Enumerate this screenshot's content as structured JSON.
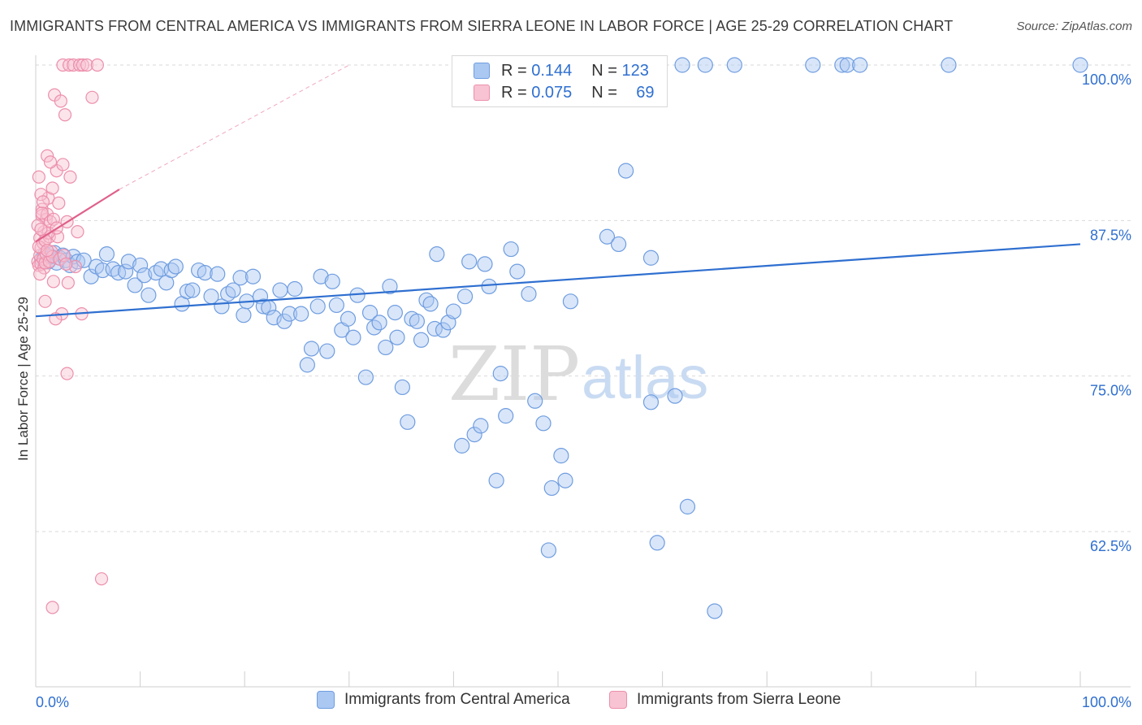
{
  "title": "IMMIGRANTS FROM CENTRAL AMERICA VS IMMIGRANTS FROM SIERRA LEONE IN LABOR FORCE | AGE 25-29 CORRELATION CHART",
  "source": "Source: ZipAtlas.com",
  "watermark": {
    "zip": "ZIP",
    "atlas": "atlas"
  },
  "legend": {
    "rows": [
      {
        "r_label": "R =",
        "r_value": "0.144",
        "n_label": "N =",
        "n_value": "123",
        "color": "#aac8f2",
        "border": "#6f9de0"
      },
      {
        "r_label": "R =",
        "r_value": "0.075",
        "n_label": "N =",
        "n_value": "69",
        "color": "#f8c3d3",
        "border": "#ec8fab"
      }
    ]
  },
  "bottom_legend": [
    {
      "label": "Immigrants from Central America",
      "color": "#aac8f2",
      "border": "#6f9de0"
    },
    {
      "label": "Immigrants from Sierra Leone",
      "color": "#f8c3d3",
      "border": "#ec8fab"
    }
  ],
  "chart_data": {
    "type": "scatter",
    "title": "IMMIGRANTS FROM CENTRAL AMERICA VS IMMIGRANTS FROM SIERRA LEONE IN LABOR FORCE | AGE 25-29 CORRELATION CHART",
    "xlabel": "",
    "ylabel": "In Labor Force | Age 25-29",
    "xlim": [
      0,
      100
    ],
    "ylim": [
      52,
      101.5
    ],
    "x_tick_labels": [
      "0.0%",
      "100.0%"
    ],
    "y_ticks": [
      62.5,
      75.0,
      87.5,
      100.0
    ],
    "y_tick_labels": [
      "62.5%",
      "75.0%",
      "87.5%",
      "100.0%"
    ],
    "grid": "horizontal dashed",
    "legend_position": "top-center",
    "series": [
      {
        "name": "Immigrants from Central America",
        "color": "#6f9de0",
        "fill": "rgba(170,200,242,0.45)",
        "trend": {
          "x": [
            0,
            100
          ],
          "y": [
            79.8,
            85.6
          ],
          "color": "#2f6fd0"
        },
        "points": [
          [
            0.6,
            84.4
          ],
          [
            0.9,
            84.8
          ],
          [
            1.2,
            84.2
          ],
          [
            1.5,
            84.6
          ],
          [
            1.8,
            84.9
          ],
          [
            2.0,
            84.1
          ],
          [
            2.3,
            84.5
          ],
          [
            2.6,
            84.7
          ],
          [
            2.9,
            84.3
          ],
          [
            3.3,
            83.9
          ],
          [
            3.6,
            84.6
          ],
          [
            4.0,
            84.2
          ],
          [
            4.6,
            84.3
          ],
          [
            5.3,
            83.0
          ],
          [
            5.8,
            83.8
          ],
          [
            6.4,
            83.5
          ],
          [
            6.8,
            84.8
          ],
          [
            7.4,
            83.6
          ],
          [
            7.9,
            83.3
          ],
          [
            8.6,
            83.4
          ],
          [
            8.9,
            84.2
          ],
          [
            9.5,
            82.3
          ],
          [
            10.0,
            83.9
          ],
          [
            10.4,
            83.1
          ],
          [
            10.8,
            81.5
          ],
          [
            11.5,
            83.3
          ],
          [
            12.0,
            83.6
          ],
          [
            12.5,
            82.5
          ],
          [
            13.0,
            83.5
          ],
          [
            13.4,
            83.8
          ],
          [
            14.0,
            80.8
          ],
          [
            14.5,
            81.8
          ],
          [
            15.0,
            81.9
          ],
          [
            15.6,
            83.5
          ],
          [
            16.2,
            83.3
          ],
          [
            16.8,
            81.4
          ],
          [
            17.4,
            83.2
          ],
          [
            17.8,
            80.6
          ],
          [
            18.4,
            81.6
          ],
          [
            18.9,
            81.9
          ],
          [
            19.6,
            82.9
          ],
          [
            19.9,
            79.9
          ],
          [
            20.2,
            81.0
          ],
          [
            20.8,
            83.0
          ],
          [
            21.5,
            81.4
          ],
          [
            21.8,
            80.6
          ],
          [
            22.3,
            80.5
          ],
          [
            22.8,
            79.7
          ],
          [
            23.4,
            81.9
          ],
          [
            23.8,
            79.4
          ],
          [
            24.3,
            80.0
          ],
          [
            24.8,
            82.0
          ],
          [
            25.4,
            80.0
          ],
          [
            26.0,
            75.9
          ],
          [
            26.4,
            77.2
          ],
          [
            27.0,
            80.6
          ],
          [
            27.3,
            83.0
          ],
          [
            27.9,
            77.0
          ],
          [
            28.4,
            82.6
          ],
          [
            28.8,
            80.7
          ],
          [
            29.3,
            78.7
          ],
          [
            29.9,
            79.6
          ],
          [
            30.4,
            78.1
          ],
          [
            30.8,
            81.5
          ],
          [
            31.6,
            74.9
          ],
          [
            32.0,
            80.1
          ],
          [
            32.4,
            78.9
          ],
          [
            32.9,
            79.3
          ],
          [
            33.5,
            77.3
          ],
          [
            33.9,
            82.2
          ],
          [
            34.4,
            80.1
          ],
          [
            34.6,
            78.1
          ],
          [
            35.1,
            74.1
          ],
          [
            35.6,
            71.3
          ],
          [
            36.0,
            79.6
          ],
          [
            36.5,
            79.4
          ],
          [
            36.9,
            77.9
          ],
          [
            37.4,
            81.1
          ],
          [
            37.8,
            80.8
          ],
          [
            38.2,
            78.8
          ],
          [
            38.4,
            84.8
          ],
          [
            39.0,
            78.7
          ],
          [
            39.5,
            79.3
          ],
          [
            40.0,
            80.2
          ],
          [
            40.8,
            69.4
          ],
          [
            41.1,
            81.4
          ],
          [
            41.5,
            84.2
          ],
          [
            42.0,
            70.3
          ],
          [
            42.6,
            71.0
          ],
          [
            43.0,
            84.0
          ],
          [
            43.4,
            82.2
          ],
          [
            44.1,
            66.6
          ],
          [
            44.5,
            75.2
          ],
          [
            45.0,
            71.8
          ],
          [
            45.5,
            85.2
          ],
          [
            46.1,
            83.4
          ],
          [
            47.2,
            81.6
          ],
          [
            47.8,
            73.0
          ],
          [
            48.6,
            71.2
          ],
          [
            49.1,
            61.0
          ],
          [
            49.4,
            66.0
          ],
          [
            50.3,
            68.6
          ],
          [
            50.7,
            66.6
          ],
          [
            51.2,
            81.0
          ],
          [
            52.7,
            100.0
          ],
          [
            54.7,
            86.2
          ],
          [
            55.8,
            85.6
          ],
          [
            56.5,
            91.5
          ],
          [
            58.9,
            84.5
          ],
          [
            58.9,
            72.9
          ],
          [
            61.2,
            73.4
          ],
          [
            59.5,
            61.6
          ],
          [
            62.4,
            64.5
          ],
          [
            64.1,
            100.0
          ],
          [
            61.9,
            100.0
          ],
          [
            66.9,
            100.0
          ],
          [
            65.0,
            56.1
          ],
          [
            74.4,
            100.0
          ],
          [
            77.2,
            100.0
          ],
          [
            77.7,
            100.0
          ],
          [
            78.9,
            100.0
          ],
          [
            87.4,
            100.0
          ],
          [
            100.0,
            100.0
          ]
        ]
      },
      {
        "name": "Immigrants from Sierra Leone",
        "color": "#ec8fab",
        "fill": "rgba(248,195,211,0.45)",
        "trend": {
          "x": [
            0,
            8
          ],
          "y": [
            85.8,
            90.0
          ],
          "color": "#e0608a",
          "extended_to": [
            30,
            100
          ]
        },
        "points": [
          [
            0.2,
            84.2
          ],
          [
            0.3,
            83.9
          ],
          [
            0.4,
            84.7
          ],
          [
            0.4,
            86.1
          ],
          [
            0.5,
            85.3
          ],
          [
            0.5,
            84.0
          ],
          [
            0.6,
            88.4
          ],
          [
            0.6,
            87.9
          ],
          [
            0.7,
            85.7
          ],
          [
            0.7,
            84.4
          ],
          [
            0.8,
            83.7
          ],
          [
            0.8,
            86.6
          ],
          [
            0.9,
            84.1
          ],
          [
            1.0,
            87.6
          ],
          [
            1.0,
            84.8
          ],
          [
            1.1,
            88.0
          ],
          [
            1.1,
            92.7
          ],
          [
            1.2,
            89.3
          ],
          [
            1.3,
            86.2
          ],
          [
            1.3,
            84.2
          ],
          [
            1.4,
            87.4
          ],
          [
            1.5,
            85.0
          ],
          [
            1.6,
            84.6
          ],
          [
            1.7,
            87.6
          ],
          [
            1.7,
            82.6
          ],
          [
            1.8,
            97.6
          ],
          [
            2.0,
            91.5
          ],
          [
            2.1,
            86.2
          ],
          [
            2.2,
            88.9
          ],
          [
            2.3,
            84.4
          ],
          [
            2.4,
            97.1
          ],
          [
            2.5,
            80.0
          ],
          [
            2.6,
            92.0
          ],
          [
            2.6,
            100.0
          ],
          [
            2.7,
            84.7
          ],
          [
            2.8,
            96.0
          ],
          [
            3.0,
            87.4
          ],
          [
            3.0,
            75.2
          ],
          [
            3.1,
            82.5
          ],
          [
            3.2,
            100.0
          ],
          [
            3.3,
            91.0
          ],
          [
            3.6,
            100.0
          ],
          [
            3.8,
            83.8
          ],
          [
            4.0,
            86.6
          ],
          [
            4.2,
            100.0
          ],
          [
            4.4,
            80.0
          ],
          [
            4.5,
            100.0
          ],
          [
            4.9,
            100.0
          ],
          [
            5.4,
            97.4
          ],
          [
            5.9,
            100.0
          ],
          [
            6.3,
            58.7
          ],
          [
            1.6,
            56.4
          ],
          [
            0.3,
            91.0
          ],
          [
            0.5,
            89.6
          ],
          [
            0.9,
            81.0
          ],
          [
            1.4,
            92.2
          ],
          [
            1.9,
            79.6
          ],
          [
            2.9,
            84.0
          ],
          [
            0.2,
            87.1
          ],
          [
            0.6,
            88.1
          ],
          [
            0.3,
            85.4
          ],
          [
            0.4,
            83.2
          ],
          [
            0.7,
            89.0
          ],
          [
            1.2,
            86.5
          ],
          [
            1.6,
            90.1
          ],
          [
            2.0,
            86.9
          ],
          [
            0.9,
            85.9
          ],
          [
            0.5,
            86.8
          ],
          [
            1.1,
            85.1
          ]
        ]
      }
    ]
  }
}
